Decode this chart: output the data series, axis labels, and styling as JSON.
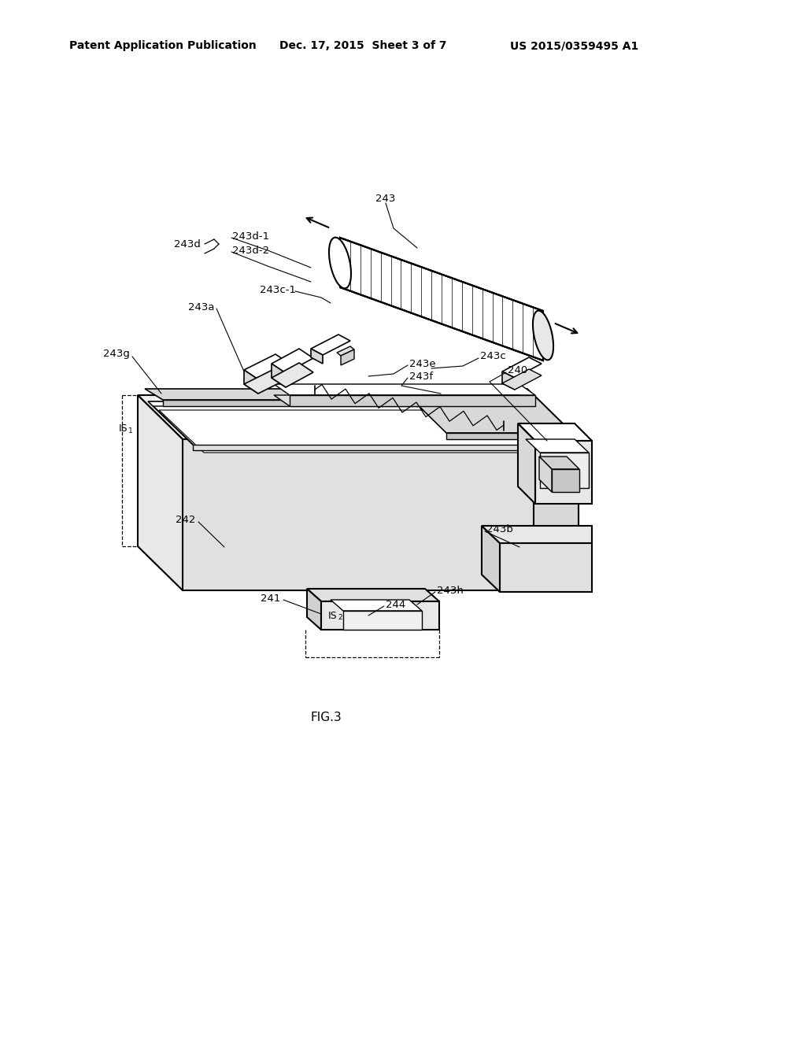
{
  "background_color": "#ffffff",
  "header_left": "Patent Application Publication",
  "header_center": "Dec. 17, 2015  Sheet 3 of 7",
  "header_right": "US 2015/0359495 A1",
  "figure_label": "FIG.3",
  "line_color": "#000000",
  "gray_light": "#e8e8e8",
  "gray_mid": "#d0d0d0",
  "gray_dark": "#b0b0b0"
}
